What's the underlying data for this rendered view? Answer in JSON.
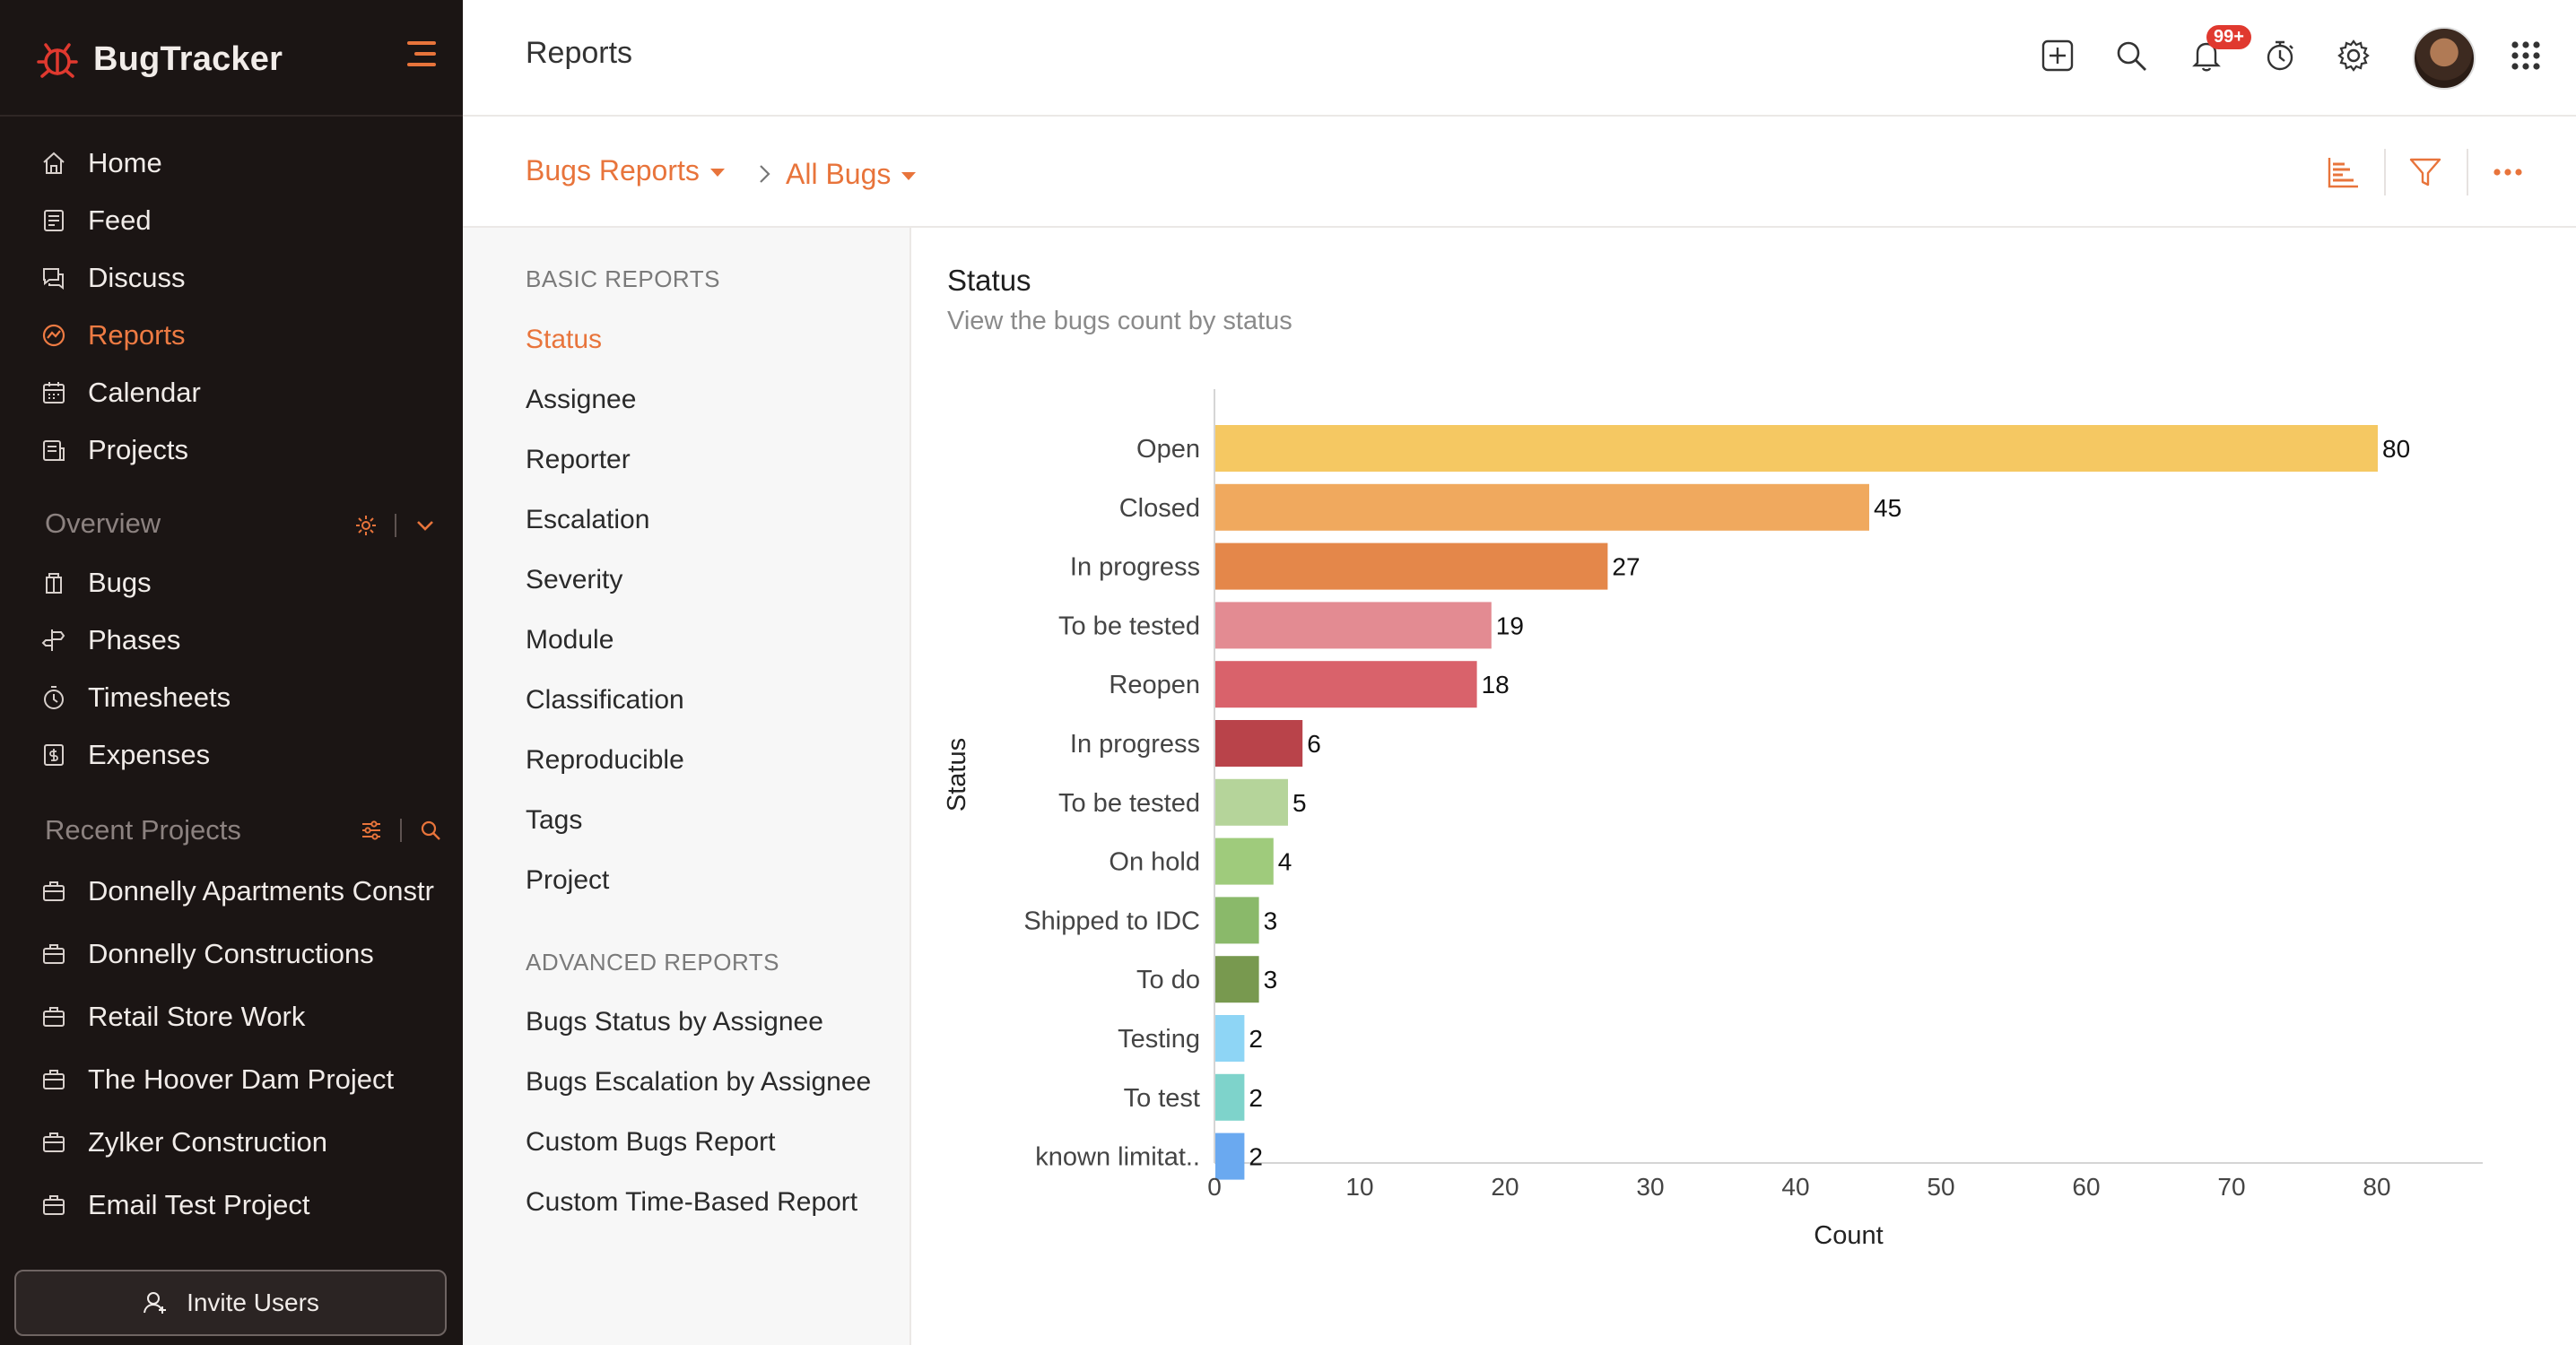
{
  "app": {
    "name": "BugTracker"
  },
  "sidebar": {
    "nav": [
      {
        "label": "Home",
        "icon": "home-icon"
      },
      {
        "label": "Feed",
        "icon": "feed-icon"
      },
      {
        "label": "Discuss",
        "icon": "discuss-icon"
      },
      {
        "label": "Reports",
        "icon": "reports-icon",
        "active": true
      },
      {
        "label": "Calendar",
        "icon": "calendar-icon"
      },
      {
        "label": "Projects",
        "icon": "projects-icon"
      }
    ],
    "overview_label": "Overview",
    "overview_items": [
      {
        "label": "Bugs",
        "icon": "bug-icon"
      },
      {
        "label": "Phases",
        "icon": "phases-icon"
      },
      {
        "label": "Timesheets",
        "icon": "timer-icon"
      },
      {
        "label": "Expenses",
        "icon": "expenses-icon"
      }
    ],
    "recent_label": "Recent Projects",
    "recent_projects": [
      "Donnelly Apartments Construction",
      "Donnelly Constructions",
      "Retail Store Work",
      "The Hoover Dam Project",
      "Zylker Construction",
      "Email Test Project"
    ],
    "invite_label": "Invite Users"
  },
  "topbar": {
    "title": "Reports",
    "notification_count": "99+",
    "icons": [
      "add-icon",
      "search-icon",
      "bell-icon",
      "stopwatch-icon",
      "gear-icon",
      "avatar",
      "apps-grid-icon"
    ]
  },
  "breadcrumb": {
    "first": "Bugs Reports",
    "second": "All Bugs"
  },
  "reports": {
    "basic_heading": "BASIC REPORTS",
    "basic": [
      "Status",
      "Assignee",
      "Reporter",
      "Escalation",
      "Severity",
      "Module",
      "Classification",
      "Reproducible",
      "Tags",
      "Project"
    ],
    "active": "Status",
    "advanced_heading": "ADVANCED REPORTS",
    "advanced": [
      "Bugs Status by Assignee",
      "Bugs Escalation by Assignee",
      "Custom Bugs Report",
      "Custom Time-Based Report"
    ]
  },
  "chart_header": {
    "title": "Status",
    "subtitle": "View the bugs count by status"
  },
  "chart_data": {
    "type": "bar",
    "orientation": "horizontal",
    "categories": [
      "Open",
      "Closed",
      "In progress",
      "To be tested",
      "Reopen",
      "In progress",
      "To be tested",
      "On hold",
      "Shipped to IDC",
      "To do",
      "Testing",
      "To test",
      "known limitat.."
    ],
    "values": [
      80,
      45,
      27,
      19,
      18,
      6,
      5,
      4,
      3,
      3,
      2,
      2,
      2
    ],
    "colors": [
      "#f5c862",
      "#f0a95e",
      "#e4874a",
      "#e38b92",
      "#d9626b",
      "#b9434a",
      "#b5d49a",
      "#9fcb7c",
      "#8ab96a",
      "#78994f",
      "#8ed5f5",
      "#7ed3cb",
      "#6aa9f0"
    ],
    "xlabel": "Count",
    "ylabel": "Status",
    "xticks": [
      0,
      10,
      20,
      30,
      40,
      50,
      60,
      70,
      80
    ],
    "xlim": [
      0,
      86
    ],
    "grid": false,
    "data_labels": true
  }
}
